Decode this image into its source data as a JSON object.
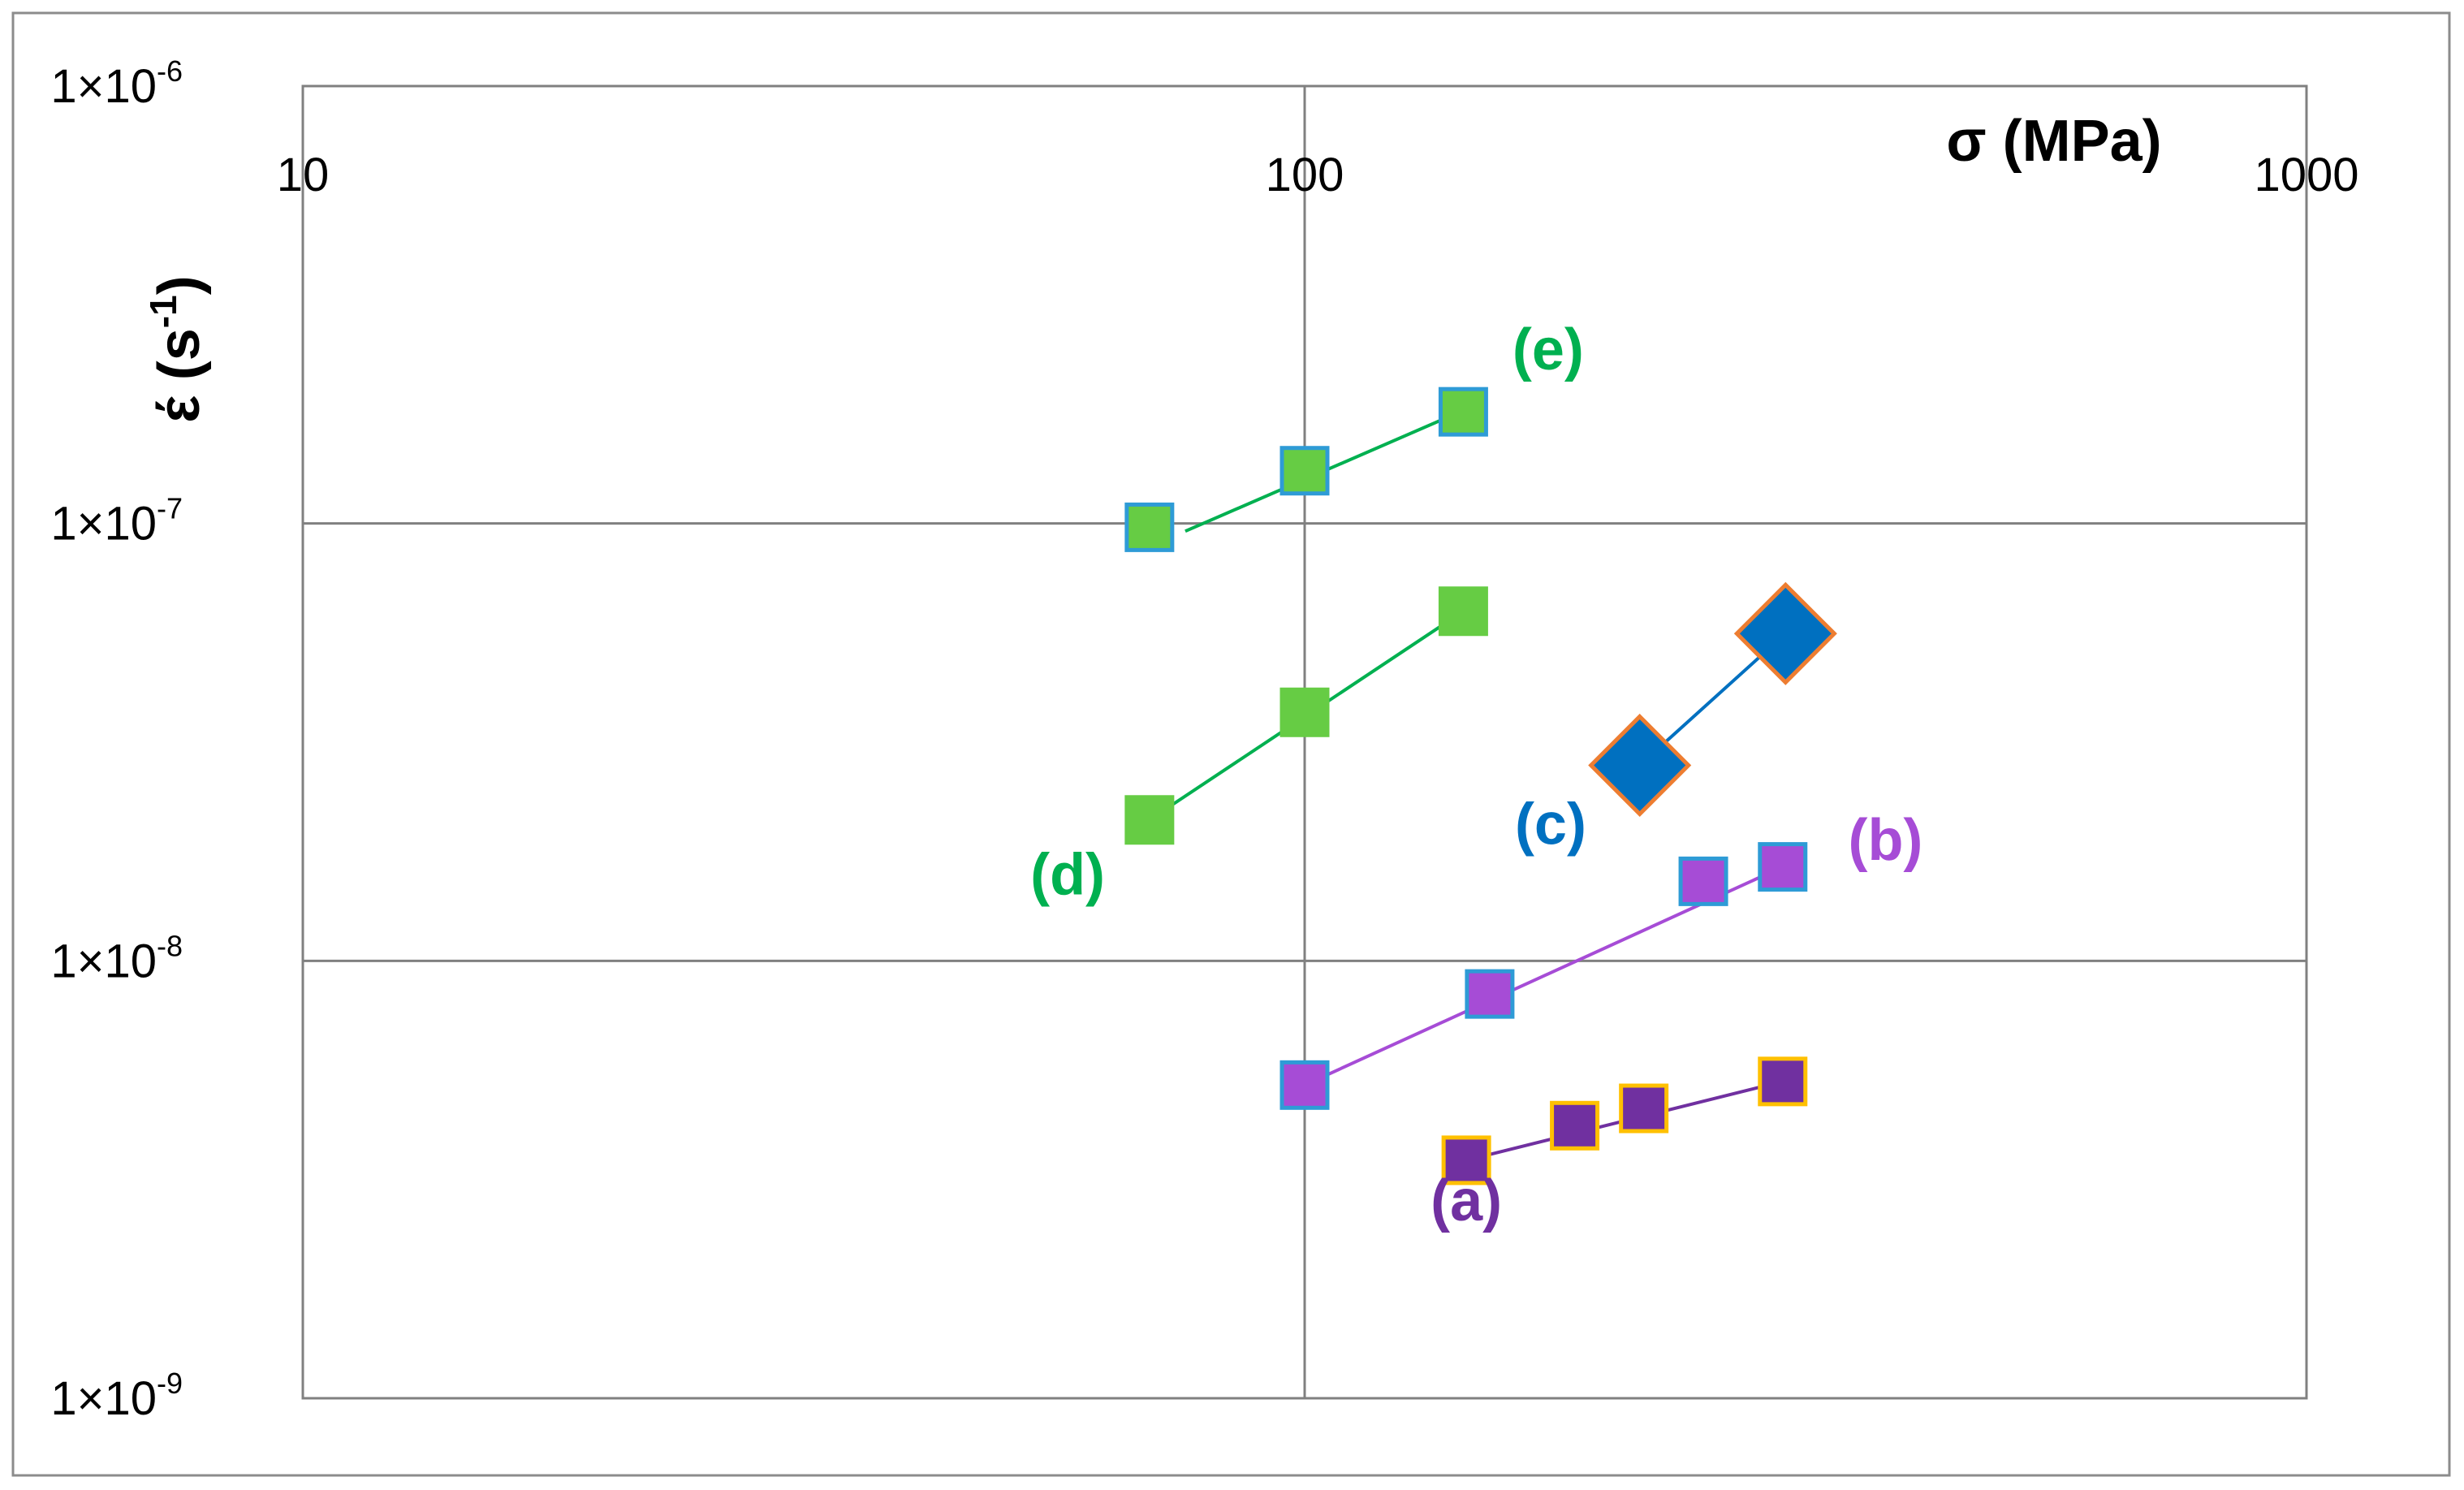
{
  "chart_data": {
    "type": "scatter",
    "title": "",
    "xlabel": "σ (MPa)",
    "ylabel": {
      "base": "έ (s",
      "sup": "-1",
      "tail": ")"
    },
    "x_scale": "log",
    "y_scale": "log",
    "xlim": [
      10,
      1000
    ],
    "ylim": [
      1e-09,
      1e-06
    ],
    "grid": true,
    "legend": "none",
    "x_ticks": [
      {
        "value": 10,
        "label": "10"
      },
      {
        "value": 100,
        "label": "100"
      },
      {
        "value": 1000,
        "label": "1000"
      }
    ],
    "y_ticks": [
      {
        "value": 1e-09,
        "base": "1×10",
        "exp": "-9"
      },
      {
        "value": 1e-08,
        "base": "1×10",
        "exp": "-8"
      },
      {
        "value": 1e-07,
        "base": "1×10",
        "exp": "-7"
      },
      {
        "value": 1e-06,
        "base": "1×10",
        "exp": "-6"
      }
    ],
    "series": [
      {
        "label": "(a)",
        "color": "#7030A0",
        "edge": "#FFC000",
        "marker": "square",
        "points": [
          [
            145,
            3.5e-09
          ],
          [
            186,
            4.2e-09
          ],
          [
            218,
            4.6e-09
          ],
          [
            300,
            5.3e-09
          ]
        ],
        "fit": [
          [
            145,
            3.5e-09
          ],
          [
            300,
            5.3e-09
          ]
        ],
        "label_at": [
          145,
          2.55e-09
        ]
      },
      {
        "label": "(b)",
        "color": "#A64CD6",
        "edge": "#2E9BD6",
        "marker": "square",
        "points": [
          [
            100,
            5.2e-09
          ],
          [
            153,
            8.4e-09
          ],
          [
            250,
            1.52e-08
          ],
          [
            300,
            1.64e-08
          ]
        ],
        "fit": [
          [
            100,
            5.2e-09
          ],
          [
            300,
            1.64e-08
          ]
        ],
        "label_at": [
          380,
          1.7e-08
        ]
      },
      {
        "label": "(c)",
        "color": "#0070C0",
        "edge": "#ED7D31",
        "marker": "diamond",
        "points": [
          [
            216,
            2.8e-08
          ],
          [
            302,
            5.6e-08
          ]
        ],
        "fit": [
          [
            216,
            2.8e-08
          ],
          [
            302,
            5.6e-08
          ]
        ],
        "label_at": [
          176,
          1.85e-08
        ]
      },
      {
        "label": "(d)",
        "color": "#66CC44",
        "edge": "#66CC44",
        "line": "#00B050",
        "marker": "square",
        "points": [
          [
            70,
            2.1e-08
          ],
          [
            100,
            3.7e-08
          ],
          [
            144,
            6.3e-08
          ]
        ],
        "fit": [
          [
            70,
            2.1e-08
          ],
          [
            144,
            6.3e-08
          ]
        ],
        "label_at": [
          58,
          1.42e-08
        ]
      },
      {
        "label": "(e)",
        "color": "#66CC44",
        "edge": "#2E9BD6",
        "line": "#00B050",
        "marker": "square",
        "points": [
          [
            70,
            9.8e-08
          ],
          [
            100,
            1.32e-07
          ],
          [
            144,
            1.8e-07
          ]
        ],
        "fit": [
          [
            76,
            9.6e-08
          ],
          [
            151,
            1.9e-07
          ]
        ],
        "label_at": [
          175,
          2.25e-07
        ]
      }
    ]
  }
}
